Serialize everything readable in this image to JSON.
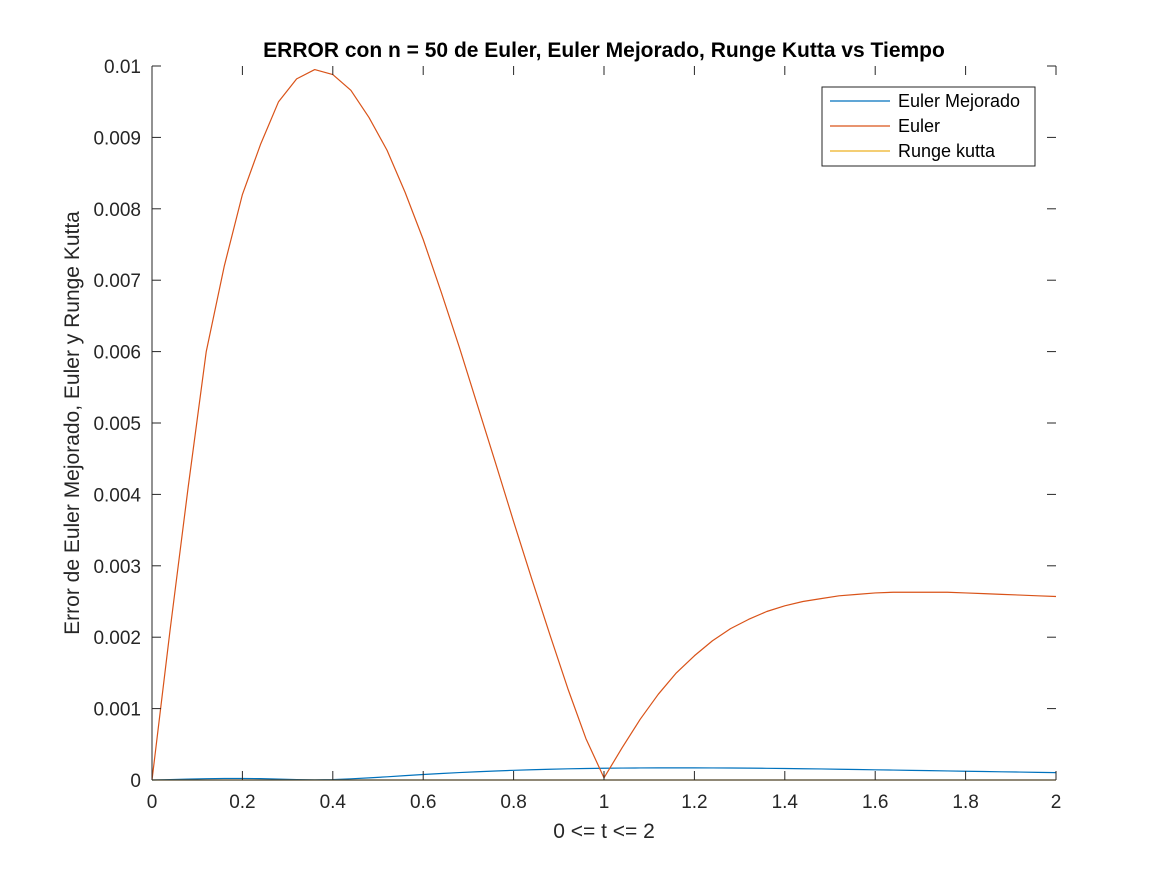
{
  "chart_data": {
    "type": "line",
    "title": "ERROR con n = 50 de Euler, Euler Mejorado, Runge Kutta vs Tiempo",
    "xlabel": "0 <= t <= 2",
    "ylabel": "Error de Euler Mejorado, Euler y Runge Kutta",
    "xlim": [
      0,
      2
    ],
    "ylim": [
      0,
      0.01
    ],
    "xticks": [
      "0",
      "0.2",
      "0.4",
      "0.6",
      "0.8",
      "1",
      "1.2",
      "1.4",
      "1.6",
      "1.8",
      "2"
    ],
    "yticks": [
      "0",
      "0.001",
      "0.002",
      "0.003",
      "0.004",
      "0.005",
      "0.006",
      "0.007",
      "0.008",
      "0.009",
      "0.01"
    ],
    "grid": false,
    "legend_position": "top-right",
    "x": [
      0,
      0.04,
      0.08,
      0.12,
      0.16,
      0.2,
      0.24,
      0.28,
      0.32,
      0.36,
      0.4,
      0.44,
      0.48,
      0.52,
      0.56,
      0.6,
      0.64,
      0.68,
      0.72,
      0.76,
      0.8,
      0.84,
      0.88,
      0.92,
      0.96,
      1.0,
      1.04,
      1.08,
      1.12,
      1.16,
      1.2,
      1.24,
      1.28,
      1.32,
      1.36,
      1.4,
      1.44,
      1.48,
      1.52,
      1.56,
      1.6,
      1.64,
      1.68,
      1.72,
      1.76,
      1.8,
      1.84,
      1.88,
      1.92,
      1.96,
      2.0
    ],
    "series": [
      {
        "name": "Euler Mejorado",
        "color": "#0072BD",
        "values": [
          0,
          5e-06,
          1.2e-05,
          1.8e-05,
          2.2e-05,
          2.2e-05,
          1.9e-05,
          1.3e-05,
          6e-06,
          2e-06,
          6e-06,
          1.7e-05,
          3e-05,
          4.5e-05,
          6.1e-05,
          7.7e-05,
          9.1e-05,
          0.000104,
          0.000116,
          0.000126,
          0.000136,
          0.000144,
          0.000151,
          0.000157,
          0.000161,
          0.000165,
          0.000167,
          0.000169,
          0.00017,
          0.00017,
          0.00017,
          0.000169,
          0.000168,
          0.000166,
          0.000164,
          0.000161,
          0.000158,
          0.000155,
          0.000151,
          0.000147,
          0.000143,
          0.000139,
          0.000135,
          0.000131,
          0.000127,
          0.000123,
          0.000119,
          0.000115,
          0.000111,
          0.000107,
          0.000103
        ]
      },
      {
        "name": "Euler",
        "color": "#D95319",
        "values": [
          0,
          0.0021,
          0.0041,
          0.006,
          0.0072,
          0.0082,
          0.0089,
          0.0095,
          0.00982,
          0.00995,
          0.00988,
          0.00966,
          0.00928,
          0.00882,
          0.00823,
          0.00757,
          0.00683,
          0.00606,
          0.00525,
          0.00444,
          0.00362,
          0.00282,
          0.00204,
          0.00128,
          0.00058,
          3e-05,
          0.00045,
          0.00085,
          0.0012,
          0.0015,
          0.00174,
          0.00195,
          0.00212,
          0.00225,
          0.00236,
          0.00244,
          0.0025,
          0.00254,
          0.00258,
          0.0026,
          0.00262,
          0.00263,
          0.00263,
          0.00263,
          0.00263,
          0.00262,
          0.00261,
          0.0026,
          0.00259,
          0.00258,
          0.00257
        ]
      },
      {
        "name": "Runge kutta",
        "color": "#EDB120",
        "values": [
          0,
          0,
          0,
          0,
          0,
          0,
          0,
          0,
          0,
          0,
          0,
          0,
          0,
          0,
          0,
          0,
          0,
          0,
          0,
          0,
          0,
          0,
          0,
          0,
          0,
          0,
          0,
          0,
          0,
          0,
          0,
          0,
          0,
          0,
          0,
          0,
          0,
          0,
          0,
          0,
          0,
          0,
          0,
          0,
          0,
          0,
          0,
          0,
          0,
          0,
          0
        ]
      }
    ]
  }
}
